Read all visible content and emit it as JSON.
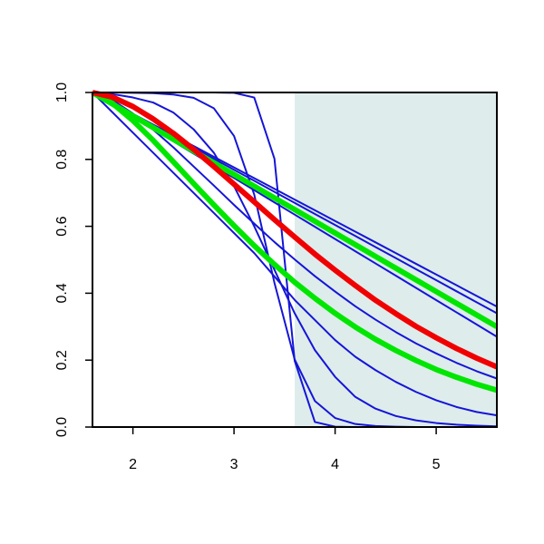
{
  "chart_data": {
    "type": "line",
    "x": [
      1.6,
      1.8,
      2.0,
      2.2,
      2.4,
      2.6,
      2.8,
      3.0,
      3.2,
      3.4,
      3.6,
      3.8,
      4.0,
      4.2,
      4.4,
      4.6,
      4.8,
      5.0,
      5.2,
      5.4,
      5.6
    ],
    "xlim": [
      1.6,
      5.6
    ],
    "xticks": [
      2,
      3,
      4,
      5
    ],
    "ylim": [
      0,
      1
    ],
    "yticks": [
      {
        "value": 0,
        "label": "0.0"
      },
      {
        "value": 0.2,
        "label": "0.2"
      },
      {
        "value": 0.4,
        "label": "0.4"
      },
      {
        "value": 0.6,
        "label": "0.6"
      },
      {
        "value": 0.8,
        "label": "0.8"
      },
      {
        "value": 1,
        "label": "1.0"
      }
    ],
    "shade_xlim": [
      3.6,
      5.6
    ],
    "shade_color": "#deecec",
    "series": [
      {
        "color": "#1515d6",
        "width": 2,
        "values": [
          1,
          0.968,
          0.936,
          0.904,
          0.872,
          0.84,
          0.808,
          0.776,
          0.744,
          0.712,
          0.68,
          0.648,
          0.616,
          0.584,
          0.552,
          0.52,
          0.488,
          0.456,
          0.424,
          0.392,
          0.36
        ]
      },
      {
        "color": "#1515d6",
        "width": 2,
        "values": [
          1,
          0.967,
          0.934,
          0.901,
          0.868,
          0.835,
          0.802,
          0.769,
          0.736,
          0.703,
          0.67,
          0.637,
          0.604,
          0.571,
          0.538,
          0.505,
          0.472,
          0.439,
          0.406,
          0.373,
          0.34
        ]
      },
      {
        "color": "#1515d6",
        "width": 2,
        "values": [
          1,
          0.9635,
          0.927,
          0.8905,
          0.854,
          0.8175,
          0.781,
          0.7445,
          0.708,
          0.6715,
          0.635,
          0.5985,
          0.562,
          0.5255,
          0.489,
          0.4525,
          0.416,
          0.3795,
          0.343,
          0.3065,
          0.27
        ]
      },
      {
        "color": "#1515d6",
        "width": 2,
        "values": [
          1,
          0.977,
          0.937,
          0.889,
          0.836,
          0.779,
          0.722,
          0.664,
          0.608,
          0.553,
          0.501,
          0.451,
          0.405,
          0.361,
          0.321,
          0.284,
          0.25,
          0.22,
          0.192,
          0.167,
          0.145
        ]
      },
      {
        "color": "#1515d6",
        "width": 2,
        "values": [
          1,
          0.94,
          0.88,
          0.82,
          0.76,
          0.7,
          0.64,
          0.58,
          0.52,
          0.45,
          0.38,
          0.32,
          0.26,
          0.21,
          0.17,
          0.135,
          0.105,
          0.08,
          0.06,
          0.045,
          0.035
        ]
      },
      {
        "color": "#1515d6",
        "width": 2,
        "values": [
          1,
          0.995,
          0.985,
          0.97,
          0.94,
          0.89,
          0.82,
          0.72,
          0.6,
          0.47,
          0.34,
          0.23,
          0.15,
          0.09,
          0.055,
          0.033,
          0.02,
          0.012,
          0.007,
          0.004,
          0.002
        ]
      },
      {
        "color": "#1515d6",
        "width": 2,
        "values": [
          1,
          1,
          0.999,
          0.998,
          0.994,
          0.984,
          0.953,
          0.87,
          0.695,
          0.431,
          0.202,
          0.078,
          0.027,
          0.009,
          0.003,
          0.001,
          0,
          0,
          0,
          0,
          0
        ]
      },
      {
        "color": "#1515d6",
        "width": 2,
        "values": [
          1,
          1,
          1,
          1,
          1,
          1,
          1,
          0.999,
          0.985,
          0.802,
          0.198,
          0.015,
          0.001,
          0,
          0,
          0,
          0,
          0,
          0,
          0,
          0
        ]
      },
      {
        "color": "#00e600",
        "width": 6,
        "values": [
          1,
          0.965,
          0.93,
          0.895,
          0.86,
          0.825,
          0.79,
          0.755,
          0.72,
          0.685,
          0.65,
          0.615,
          0.58,
          0.545,
          0.51,
          0.475,
          0.44,
          0.405,
          0.37,
          0.335,
          0.3
        ]
      },
      {
        "color": "#00e600",
        "width": 6,
        "values": [
          1,
          0.967,
          0.916,
          0.857,
          0.793,
          0.728,
          0.664,
          0.602,
          0.542,
          0.486,
          0.433,
          0.385,
          0.34,
          0.299,
          0.262,
          0.229,
          0.199,
          0.172,
          0.149,
          0.128,
          0.11
        ]
      },
      {
        "color": "#f00000",
        "width": 6,
        "values": [
          1,
          0.986,
          0.958,
          0.921,
          0.878,
          0.83,
          0.779,
          0.726,
          0.673,
          0.62,
          0.568,
          0.517,
          0.469,
          0.423,
          0.379,
          0.339,
          0.301,
          0.267,
          0.235,
          0.206,
          0.18
        ]
      }
    ]
  }
}
